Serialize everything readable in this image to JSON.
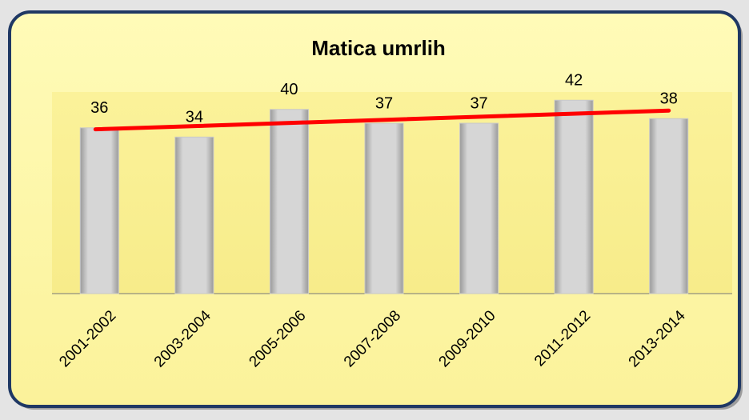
{
  "chart_data": {
    "type": "bar",
    "title": "Matica umrlih",
    "categories": [
      "2001-2002",
      "2003-2004",
      "2005-2006",
      "2007-2008",
      "2009-2010",
      "2011-2012",
      "2013-2014"
    ],
    "values": [
      36,
      34,
      40,
      37,
      37,
      42,
      38
    ],
    "color": "#c8c8c8",
    "ylim": [
      0,
      45
    ],
    "trendline": {
      "color": "#ff0000"
    }
  }
}
